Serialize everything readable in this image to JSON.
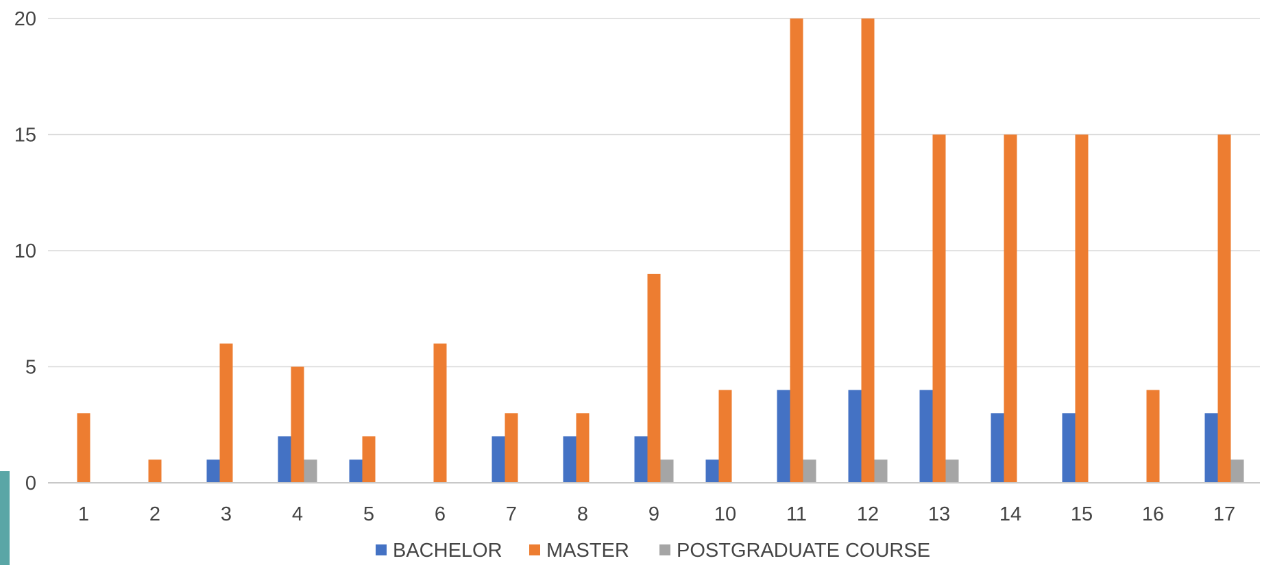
{
  "chart_data": {
    "type": "bar",
    "title": "",
    "xlabel": "",
    "ylabel": "",
    "ylim": [
      0,
      20
    ],
    "yticks": [
      0,
      5,
      10,
      15,
      20
    ],
    "grid": true,
    "legend_position": "bottom",
    "categories": [
      "1",
      "2",
      "3",
      "4",
      "5",
      "6",
      "7",
      "8",
      "9",
      "10",
      "11",
      "12",
      "13",
      "14",
      "15",
      "16",
      "17"
    ],
    "series": [
      {
        "name": "BACHELOR",
        "color": "#4472c4",
        "values": [
          0,
          0,
          1,
          2,
          1,
          0,
          2,
          2,
          2,
          1,
          4,
          4,
          4,
          3,
          3,
          0,
          3
        ]
      },
      {
        "name": "MASTER",
        "color": "#ed7d31",
        "values": [
          3,
          1,
          6,
          5,
          2,
          6,
          3,
          3,
          9,
          4,
          20,
          20,
          15,
          15,
          15,
          4,
          15
        ]
      },
      {
        "name": "POSTGRADUATE COURSE",
        "color": "#a5a5a5",
        "values": [
          0,
          0,
          0,
          1,
          0,
          0,
          0,
          0,
          1,
          0,
          1,
          1,
          1,
          0,
          0,
          0,
          1
        ]
      }
    ]
  }
}
